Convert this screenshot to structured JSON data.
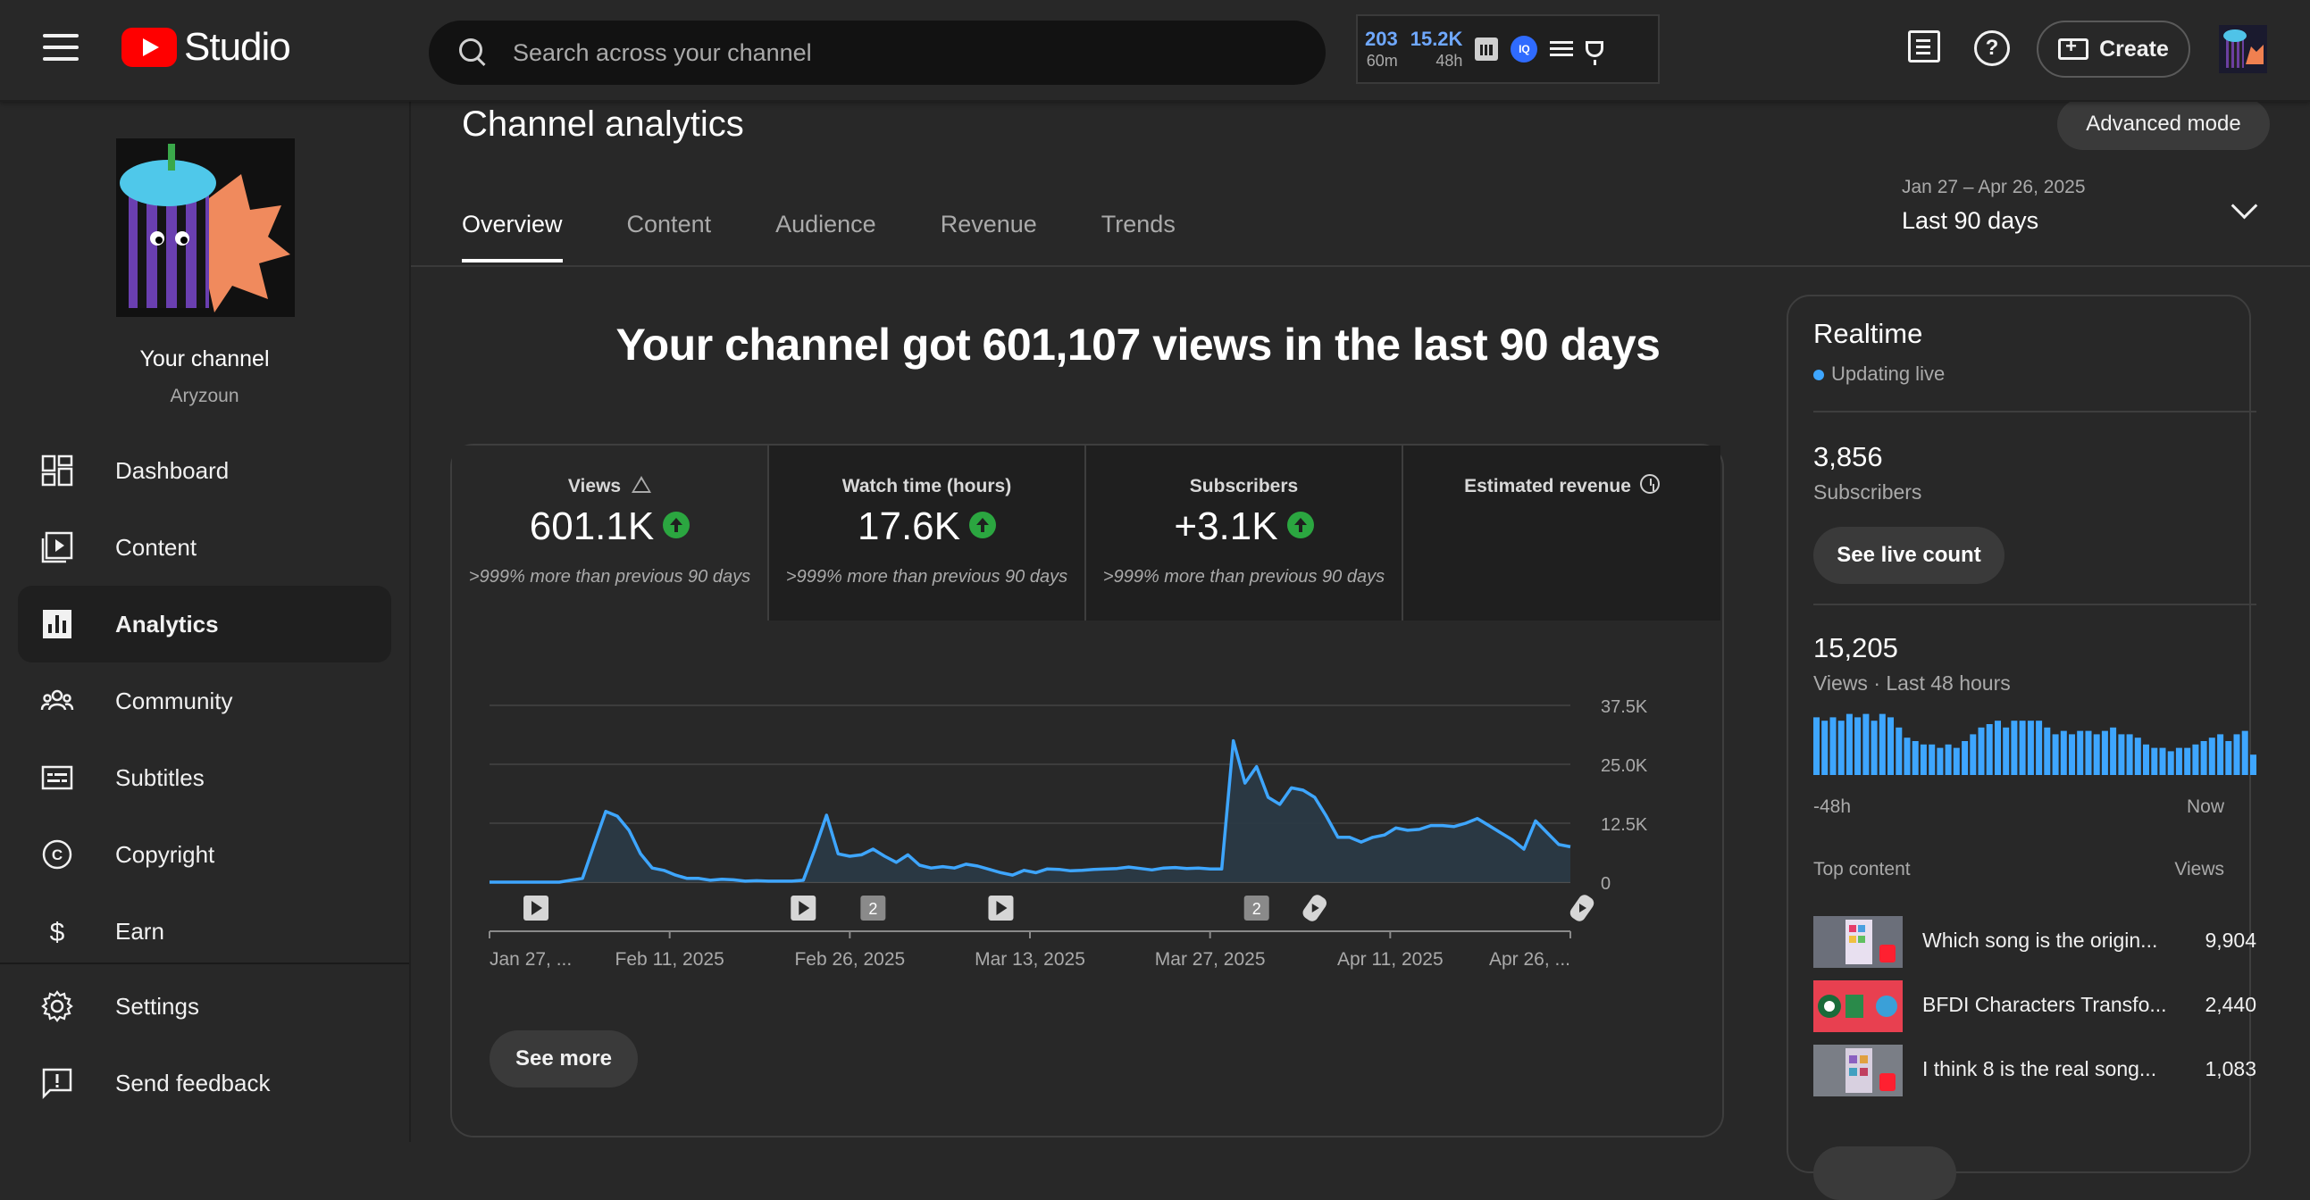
{
  "header": {
    "logo_text": "Studio",
    "search_placeholder": "Search across your channel",
    "stats": [
      {
        "value": "203",
        "label": "60m"
      },
      {
        "value": "15.2K",
        "label": "48h"
      }
    ],
    "iq_badge": "IQ",
    "create_label": "Create"
  },
  "sidebar": {
    "channel_name": "Your channel",
    "channel_handle": "Aryzoun",
    "items": [
      {
        "label": "Dashboard",
        "icon": "dashboard-icon"
      },
      {
        "label": "Content",
        "icon": "content-icon"
      },
      {
        "label": "Analytics",
        "icon": "analytics-icon",
        "active": true
      },
      {
        "label": "Community",
        "icon": "community-icon"
      },
      {
        "label": "Subtitles",
        "icon": "subtitles-icon"
      },
      {
        "label": "Copyright",
        "icon": "copyright-icon"
      },
      {
        "label": "Earn",
        "icon": "earn-icon"
      }
    ],
    "bottom_items": [
      {
        "label": "Settings",
        "icon": "gear-icon"
      },
      {
        "label": "Send feedback",
        "icon": "feedback-icon"
      }
    ]
  },
  "main": {
    "title": "Channel analytics",
    "advanced_mode_label": "Advanced mode",
    "tabs": [
      "Overview",
      "Content",
      "Audience",
      "Revenue",
      "Trends"
    ],
    "active_tab": "Overview",
    "date_range": {
      "dates": "Jan 27 – Apr 26, 2025",
      "label": "Last 90 days"
    },
    "headline": "Your channel got 601,107 views in the last 90 days",
    "metrics": [
      {
        "title": "Views",
        "value": "601.1K",
        "delta": ">999% more than previous 90 days"
      },
      {
        "title": "Watch time (hours)",
        "value": "17.6K",
        "delta": ">999% more than previous 90 days"
      },
      {
        "title": "Subscribers",
        "value": "+3.1K",
        "delta": ">999% more than previous 90 days"
      },
      {
        "title": "Estimated revenue",
        "value": "",
        "delta": ""
      }
    ],
    "see_more_label": "See more"
  },
  "chart_data": {
    "type": "area",
    "x_labels": [
      "Jan 27, ...",
      "Feb 11, 2025",
      "Feb 26, 2025",
      "Mar 13, 2025",
      "Mar 27, 2025",
      "Apr 11, 2025",
      "Apr 26, ..."
    ],
    "y_ticks": [
      "37.5K",
      "25.0K",
      "12.5K",
      "0"
    ],
    "ylim": [
      0,
      37500
    ],
    "grid": true,
    "series": [
      {
        "values": [
          0,
          0,
          0,
          0,
          0,
          0,
          0,
          400,
          800,
          8000,
          15000,
          14000,
          11000,
          6000,
          3000,
          2500,
          1500,
          800,
          800,
          400,
          600,
          500,
          200,
          300,
          200,
          200,
          200,
          400,
          7000,
          14200,
          6000,
          5500,
          5800,
          7000,
          5500,
          4200,
          5800,
          3600,
          3000,
          3300,
          3000,
          3800,
          3400,
          2700,
          2000,
          1500,
          2500,
          2000,
          2800,
          2700,
          2400,
          2500,
          2700,
          2800,
          2900,
          3200,
          2900,
          2600,
          3000,
          3100,
          2900,
          3000,
          2800,
          2800,
          30000,
          21000,
          24500,
          18000,
          16500,
          20000,
          19500,
          18000,
          14000,
          9500,
          9500,
          8500,
          9500,
          10000,
          11500,
          11000,
          11200,
          12000,
          12000,
          11800,
          12500,
          13500,
          12000,
          10500,
          9000,
          7000,
          13000,
          10500,
          8000,
          7500
        ]
      }
    ],
    "markers": [
      {
        "type": "video-icon",
        "x_index": 4
      },
      {
        "type": "video-icon",
        "x_index": 27
      },
      {
        "type": "count-badge",
        "value": "2",
        "x_index": 33
      },
      {
        "type": "video-icon",
        "x_index": 44
      },
      {
        "type": "count-badge",
        "value": "2",
        "x_index": 66
      },
      {
        "type": "shorts-icon",
        "x_index": 71
      },
      {
        "type": "shorts-icon",
        "x_index": 94
      }
    ],
    "colors": {
      "line": "#3ea6ff",
      "fill": "#2a3a46"
    }
  },
  "realtime": {
    "title": "Realtime",
    "status": "Updating live",
    "subscribers_value": "3,856",
    "subscribers_label": "Subscribers",
    "live_count_label": "See live count",
    "views_value": "15,205",
    "views_label": "Views · Last 48 hours",
    "bars": [
      0.85,
      0.8,
      0.85,
      0.8,
      0.9,
      0.85,
      0.9,
      0.8,
      0.9,
      0.85,
      0.7,
      0.55,
      0.5,
      0.45,
      0.45,
      0.4,
      0.45,
      0.4,
      0.5,
      0.6,
      0.7,
      0.75,
      0.8,
      0.7,
      0.8,
      0.8,
      0.8,
      0.8,
      0.7,
      0.6,
      0.65,
      0.6,
      0.65,
      0.65,
      0.6,
      0.65,
      0.7,
      0.6,
      0.6,
      0.55,
      0.45,
      0.4,
      0.4,
      0.35,
      0.4,
      0.4,
      0.45,
      0.5,
      0.55,
      0.6,
      0.5,
      0.6,
      0.65,
      0.3
    ],
    "bars_left_label": "-48h",
    "bars_right_label": "Now",
    "top_content_label": "Top content",
    "top_content_views_label": "Views",
    "top_content": [
      {
        "title": "Which song is the origin...",
        "views": "9,904"
      },
      {
        "title": "BFDI Characters Transfo...",
        "views": "2,440"
      },
      {
        "title": "I think 8 is the real song...",
        "views": "1,083"
      }
    ]
  }
}
